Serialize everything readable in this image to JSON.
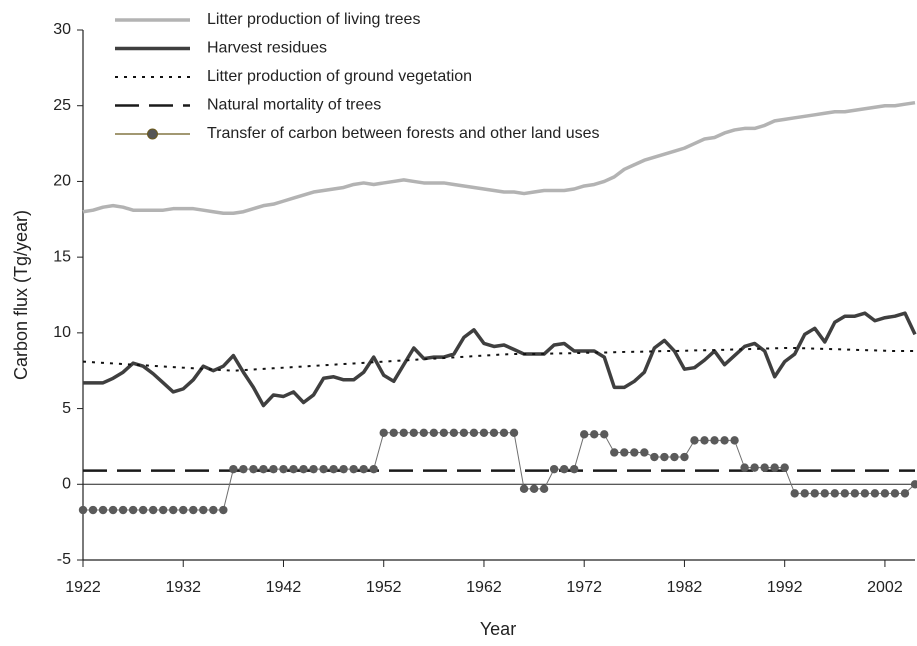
{
  "chart_data": {
    "type": "line",
    "xlabel": "Year",
    "ylabel": "Carbon flux (Tg/year)",
    "x": [
      1922,
      1923,
      1924,
      1925,
      1926,
      1927,
      1928,
      1929,
      1930,
      1931,
      1932,
      1933,
      1934,
      1935,
      1936,
      1937,
      1938,
      1939,
      1940,
      1941,
      1942,
      1943,
      1944,
      1945,
      1946,
      1947,
      1948,
      1949,
      1950,
      1951,
      1952,
      1953,
      1954,
      1955,
      1956,
      1957,
      1958,
      1959,
      1960,
      1961,
      1962,
      1963,
      1964,
      1965,
      1966,
      1967,
      1968,
      1969,
      1970,
      1971,
      1972,
      1973,
      1974,
      1975,
      1976,
      1977,
      1978,
      1979,
      1980,
      1981,
      1982,
      1983,
      1984,
      1985,
      1986,
      1987,
      1988,
      1989,
      1990,
      1991,
      1992,
      1993,
      1994,
      1995,
      1996,
      1997,
      1998,
      1999,
      2000,
      2001,
      2002,
      2003,
      2004,
      2005
    ],
    "xlim": [
      1922,
      2005
    ],
    "xticks": [
      1922,
      1932,
      1942,
      1952,
      1962,
      1972,
      1982,
      1992,
      2002
    ],
    "ylim": [
      -5,
      30
    ],
    "yticks": [
      -5,
      0,
      5,
      10,
      15,
      20,
      25,
      30
    ],
    "grid": false,
    "legend": "upper left",
    "series": [
      {
        "name": "Litter production of living trees",
        "color": "#b3b3b3",
        "style": "solid",
        "values": [
          18.0,
          18.1,
          18.3,
          18.4,
          18.3,
          18.1,
          18.1,
          18.1,
          18.1,
          18.2,
          18.2,
          18.2,
          18.1,
          18.0,
          17.9,
          17.9,
          18.0,
          18.2,
          18.4,
          18.5,
          18.7,
          18.9,
          19.1,
          19.3,
          19.4,
          19.5,
          19.6,
          19.8,
          19.9,
          19.8,
          19.9,
          20.0,
          20.1,
          20.0,
          19.9,
          19.9,
          19.9,
          19.8,
          19.7,
          19.6,
          19.5,
          19.4,
          19.3,
          19.3,
          19.2,
          19.3,
          19.4,
          19.4,
          19.4,
          19.5,
          19.7,
          19.8,
          20.0,
          20.3,
          20.8,
          21.1,
          21.4,
          21.6,
          21.8,
          22.0,
          22.2,
          22.5,
          22.8,
          22.9,
          23.2,
          23.4,
          23.5,
          23.5,
          23.7,
          24.0,
          24.1,
          24.2,
          24.3,
          24.4,
          24.5,
          24.6,
          24.6,
          24.7,
          24.8,
          24.9,
          25.0,
          25.0,
          25.1,
          25.2
        ]
      },
      {
        "name": "Harvest residues",
        "color": "#3f3f3f",
        "style": "solid",
        "values": [
          6.7,
          6.7,
          6.7,
          7.0,
          7.4,
          8.0,
          7.8,
          7.3,
          6.7,
          6.1,
          6.3,
          6.9,
          7.8,
          7.5,
          7.8,
          8.5,
          7.4,
          6.4,
          5.2,
          5.9,
          5.8,
          6.1,
          5.4,
          5.9,
          7.0,
          7.1,
          6.9,
          6.9,
          7.4,
          8.4,
          7.2,
          6.8,
          7.9,
          9.0,
          8.3,
          8.4,
          8.4,
          8.6,
          9.7,
          10.2,
          9.3,
          9.1,
          9.2,
          8.9,
          8.6,
          8.6,
          8.6,
          9.2,
          9.3,
          8.8,
          8.8,
          8.8,
          8.4,
          6.4,
          6.4,
          6.8,
          7.4,
          9.0,
          9.5,
          8.8,
          7.6,
          7.7,
          8.2,
          8.8,
          7.9,
          8.5,
          9.1,
          9.3,
          8.8,
          7.1,
          8.1,
          8.6,
          9.9,
          10.3,
          9.4,
          10.7,
          11.1,
          11.1,
          11.3,
          10.8,
          11.0,
          11.1,
          11.3,
          9.9
        ]
      },
      {
        "name": "Litter production of ground vegetation",
        "color": "#111111",
        "style": "dotted",
        "values": [
          8.1,
          8.06,
          8.02,
          7.98,
          7.94,
          7.9,
          7.86,
          7.82,
          7.78,
          7.74,
          7.7,
          7.66,
          7.62,
          7.58,
          7.54,
          7.5,
          7.54,
          7.58,
          7.62,
          7.66,
          7.7,
          7.74,
          7.78,
          7.82,
          7.86,
          7.9,
          7.94,
          7.98,
          8.02,
          8.06,
          8.1,
          8.14,
          8.18,
          8.22,
          8.26,
          8.3,
          8.34,
          8.38,
          8.42,
          8.46,
          8.5,
          8.54,
          8.58,
          8.6,
          8.6,
          8.6,
          8.62,
          8.64,
          8.65,
          8.66,
          8.68,
          8.7,
          8.7,
          8.72,
          8.74,
          8.75,
          8.76,
          8.78,
          8.8,
          8.8,
          8.82,
          8.84,
          8.85,
          8.86,
          8.88,
          8.9,
          8.92,
          8.94,
          8.96,
          8.98,
          9.0,
          9.0,
          8.98,
          8.96,
          8.94,
          8.92,
          8.9,
          8.88,
          8.86,
          8.84,
          8.82,
          8.8,
          8.8,
          8.8
        ]
      },
      {
        "name": "Natural mortality of trees",
        "color": "#1a1a1a",
        "style": "dashed",
        "values": [
          0.9,
          0.9,
          0.9,
          0.9,
          0.9,
          0.9,
          0.9,
          0.9,
          0.9,
          0.9,
          0.9,
          0.9,
          0.9,
          0.9,
          0.9,
          0.9,
          0.9,
          0.9,
          0.9,
          0.9,
          0.9,
          0.9,
          0.9,
          0.9,
          0.9,
          0.9,
          0.9,
          0.9,
          0.9,
          0.9,
          0.9,
          0.9,
          0.9,
          0.9,
          0.9,
          0.9,
          0.9,
          0.9,
          0.9,
          0.9,
          0.9,
          0.9,
          0.9,
          0.9,
          0.9,
          0.9,
          0.9,
          0.9,
          0.9,
          0.9,
          0.9,
          0.9,
          0.9,
          0.9,
          0.9,
          0.9,
          0.9,
          0.9,
          0.9,
          0.9,
          0.9,
          0.9,
          0.9,
          0.9,
          0.9,
          0.9,
          0.9,
          0.9,
          0.9,
          0.9,
          0.9,
          0.9,
          0.9,
          0.9,
          0.9,
          0.9,
          0.9,
          0.9,
          0.9,
          0.9,
          0.9,
          0.9,
          0.9,
          0.9
        ]
      },
      {
        "name": "Transfer of carbon between forests and other land uses",
        "color": "#6e6e6e",
        "style": "markers",
        "values": [
          -1.7,
          -1.7,
          -1.7,
          -1.7,
          -1.7,
          -1.7,
          -1.7,
          -1.7,
          -1.7,
          -1.7,
          -1.7,
          -1.7,
          -1.7,
          -1.7,
          -1.7,
          1.0,
          1.0,
          1.0,
          1.0,
          1.0,
          1.0,
          1.0,
          1.0,
          1.0,
          1.0,
          1.0,
          1.0,
          1.0,
          1.0,
          1.0,
          3.4,
          3.4,
          3.4,
          3.4,
          3.4,
          3.4,
          3.4,
          3.4,
          3.4,
          3.4,
          3.4,
          3.4,
          3.4,
          3.4,
          -0.3,
          -0.3,
          -0.3,
          1.0,
          1.0,
          1.0,
          3.3,
          3.3,
          3.3,
          2.1,
          2.1,
          2.1,
          2.1,
          1.8,
          1.8,
          1.8,
          1.8,
          2.9,
          2.9,
          2.9,
          2.9,
          2.9,
          1.1,
          1.1,
          1.1,
          1.1,
          1.1,
          -0.6,
          -0.6,
          -0.6,
          -0.6,
          -0.6,
          -0.6,
          -0.6,
          -0.6,
          -0.6,
          -0.6,
          -0.6,
          -0.6,
          0.0
        ]
      }
    ]
  }
}
